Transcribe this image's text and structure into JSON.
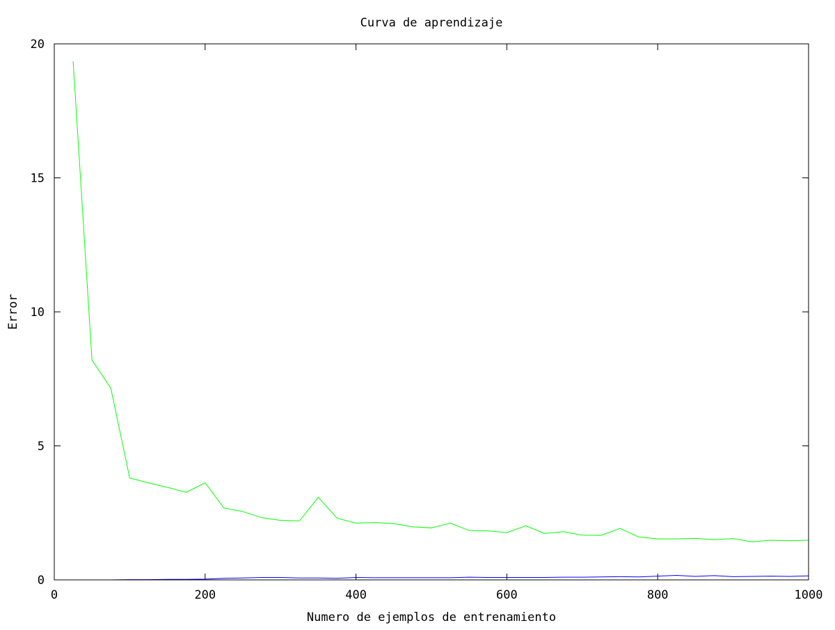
{
  "chart_data": {
    "type": "line",
    "title": "Curva de aprendizaje",
    "xlabel": "Numero de ejemplos de entrenamiento",
    "ylabel": "Error",
    "xlim": [
      0,
      1000
    ],
    "ylim": [
      0,
      20
    ],
    "xticks": [
      0,
      200,
      400,
      600,
      800,
      1000
    ],
    "yticks": [
      0,
      5,
      10,
      15,
      20
    ],
    "grid": false,
    "series": [
      {
        "color": "#00ff00",
        "x": [
          25,
          50,
          75,
          100,
          125,
          150,
          175,
          200,
          225,
          250,
          275,
          300,
          325,
          350,
          375,
          400,
          425,
          450,
          475,
          500,
          525,
          550,
          575,
          600,
          625,
          650,
          675,
          700,
          725,
          750,
          775,
          800,
          825,
          850,
          875,
          900,
          925,
          950,
          975,
          1000
        ],
        "values": [
          19.35,
          8.2,
          7.15,
          3.8,
          3.62,
          3.45,
          3.27,
          3.62,
          2.68,
          2.55,
          2.32,
          2.22,
          2.2,
          3.08,
          2.3,
          2.12,
          2.14,
          2.1,
          1.98,
          1.94,
          2.12,
          1.84,
          1.83,
          1.76,
          2.02,
          1.73,
          1.8,
          1.67,
          1.66,
          1.92,
          1.6,
          1.53,
          1.53,
          1.55,
          1.5,
          1.54,
          1.42,
          1.48,
          1.46,
          1.48
        ]
      },
      {
        "color": "#0000ff",
        "x": [
          25,
          50,
          75,
          100,
          125,
          150,
          175,
          200,
          225,
          250,
          275,
          300,
          325,
          350,
          375,
          400,
          425,
          450,
          475,
          500,
          525,
          550,
          575,
          600,
          625,
          650,
          675,
          700,
          725,
          750,
          775,
          800,
          825,
          850,
          875,
          900,
          925,
          950,
          975,
          1000
        ],
        "values": [
          0.0,
          0.0,
          0.0,
          0.01,
          0.01,
          0.02,
          0.02,
          0.03,
          0.06,
          0.07,
          0.09,
          0.09,
          0.07,
          0.07,
          0.06,
          0.09,
          0.08,
          0.08,
          0.08,
          0.08,
          0.08,
          0.1,
          0.09,
          0.09,
          0.09,
          0.09,
          0.1,
          0.1,
          0.11,
          0.12,
          0.11,
          0.14,
          0.17,
          0.13,
          0.16,
          0.12,
          0.13,
          0.14,
          0.13,
          0.15
        ]
      }
    ]
  }
}
